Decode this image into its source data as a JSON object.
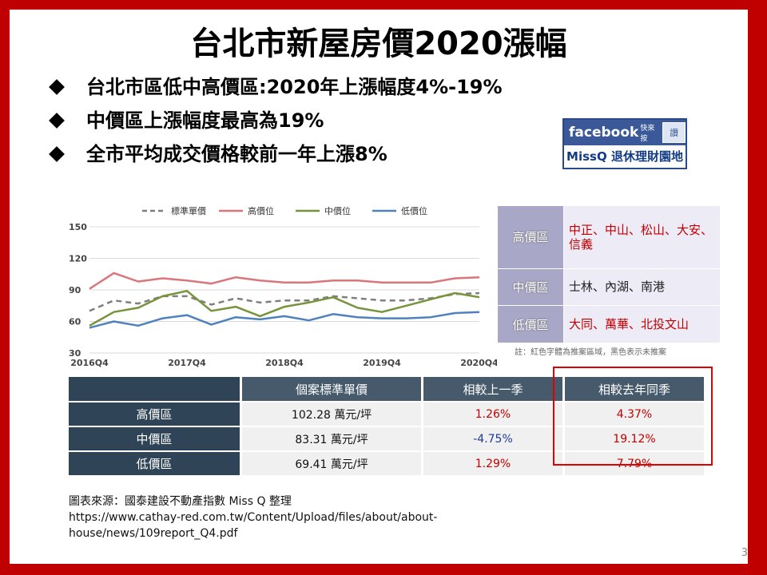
{
  "title": "台北市新屋房價2020漲幅",
  "bullets": [
    "台北市區低中高價區:2020年上漲幅度4%-19%",
    "中價區上漲幅度最高為19%",
    "全市平均成交價格較前一年上漲8%"
  ],
  "facebook_badge": {
    "brand": "facebook",
    "small": "快來按",
    "like": "讚",
    "name": "MissQ 退休理財園地"
  },
  "chart_data": {
    "type": "line",
    "x": [
      "2016Q4",
      "2017Q1",
      "2017Q2",
      "2017Q3",
      "2017Q4",
      "2018Q1",
      "2018Q2",
      "2018Q3",
      "2018Q4",
      "2019Q1",
      "2019Q2",
      "2019Q3",
      "2019Q4",
      "2020Q1",
      "2020Q2",
      "2020Q3",
      "2020Q4"
    ],
    "x_tick_labels": [
      "2016Q4",
      "2017Q4",
      "2018Q4",
      "2019Q4",
      "2020Q4"
    ],
    "ylim": [
      30,
      150
    ],
    "y_ticks": [
      30,
      60,
      90,
      120,
      150
    ],
    "legend_position": "top",
    "series": [
      {
        "name": "標準單價",
        "color": "#7f7f7f",
        "dash": true,
        "values": [
          70,
          80,
          77,
          84,
          84,
          76,
          82,
          78,
          80,
          80,
          84,
          82,
          80,
          80,
          82,
          86,
          87
        ]
      },
      {
        "name": "高價位",
        "color": "#d9757b",
        "dash": false,
        "values": [
          91,
          106,
          98,
          101,
          99,
          96,
          102,
          99,
          97,
          97,
          99,
          99,
          97,
          97,
          97,
          101,
          102
        ]
      },
      {
        "name": "中價位",
        "color": "#77933c",
        "dash": false,
        "values": [
          56,
          69,
          73,
          84,
          89,
          70,
          74,
          65,
          74,
          78,
          83,
          73,
          69,
          75,
          81,
          87,
          83
        ]
      },
      {
        "name": "低價位",
        "color": "#4f81bd",
        "dash": false,
        "values": [
          54,
          60,
          56,
          63,
          66,
          57,
          64,
          62,
          65,
          61,
          67,
          64,
          63,
          63,
          64,
          68,
          69
        ]
      }
    ]
  },
  "regions": [
    {
      "label": "高價區",
      "value": "中正、中山、松山、大安、信義",
      "color": "red"
    },
    {
      "label": "中價區",
      "value": "士林、內湖、南港",
      "color": "black"
    },
    {
      "label": "低價區",
      "value": "大同、萬華、北投文山",
      "color": "red"
    }
  ],
  "region_note": "註：紅色字體為推案區域，黑色表示未推案",
  "table": {
    "headers": [
      "",
      "個案標準單價",
      "相較上一季",
      "相較去年同季"
    ],
    "rows": [
      {
        "label": "高價區",
        "price": "102.28 萬元/坪",
        "qoq": "1.26%",
        "yoy": "4.37%",
        "qoq_color": "red"
      },
      {
        "label": "中價區",
        "price": "83.31 萬元/坪",
        "qoq": "-4.75%",
        "yoy": "19.12%",
        "qoq_color": "blue"
      },
      {
        "label": "低價區",
        "price": "69.41 萬元/坪",
        "qoq": "1.29%",
        "yoy": "7.79%",
        "qoq_color": "red"
      }
    ]
  },
  "source": {
    "line1": "圖表來源：國泰建設不動產指數  Miss Q 整理",
    "line2": "https://www.cathay-red.com.tw/Content/Upload/files/about/about-",
    "line3": "house/news/109report_Q4.pdf"
  },
  "page_number": "3"
}
